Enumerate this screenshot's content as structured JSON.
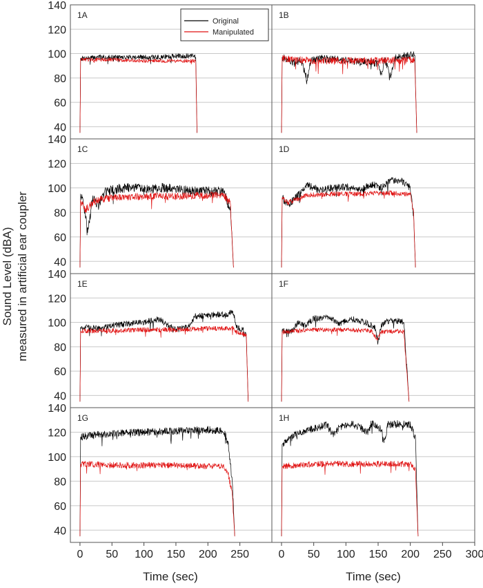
{
  "figure": {
    "ylabel_line1": "Sound Level (dBA)",
    "ylabel_line2": "measured in artificial ear coupler",
    "xlabel_left": "Time (sec)",
    "xlabel_right": "Time (sec)",
    "legend": [
      "Original",
      "Manipulated"
    ],
    "colors": {
      "original": "#000000",
      "manipulated": "#e01010",
      "grid": "#c8c8c8",
      "frame": "#555555"
    }
  },
  "chart_data": [
    {
      "type": "line",
      "panel": "1A",
      "xlim": [
        -15,
        300
      ],
      "ylim": [
        30,
        140
      ],
      "yticks": [
        40,
        60,
        80,
        100,
        120,
        140
      ],
      "series": [
        {
          "name": "Original",
          "points": [
            [
              0,
              35
            ],
            [
              1,
              96
            ],
            [
              30,
              97
            ],
            [
              60,
              97
            ],
            [
              90,
              97
            ],
            [
              120,
              97
            ],
            [
              150,
              98
            ],
            [
              180,
              98
            ],
            [
              181,
              97
            ],
            [
              183,
              35
            ]
          ],
          "noise": 2
        },
        {
          "name": "Manipulated",
          "points": [
            [
              0,
              35
            ],
            [
              1,
              95
            ],
            [
              50,
              95
            ],
            [
              100,
              94
            ],
            [
              150,
              94
            ],
            [
              180,
              94
            ],
            [
              181,
              93
            ],
            [
              183,
              35
            ]
          ],
          "noise": 1.5
        }
      ]
    },
    {
      "type": "line",
      "panel": "1B",
      "xlim": [
        -15,
        300
      ],
      "ylim": [
        30,
        140
      ],
      "yticks": [
        40,
        60,
        80,
        100,
        120,
        140
      ],
      "series": [
        {
          "name": "Original",
          "points": [
            [
              0,
              35
            ],
            [
              1,
              97
            ],
            [
              20,
              92
            ],
            [
              30,
              95
            ],
            [
              40,
              78
            ],
            [
              45,
              94
            ],
            [
              60,
              96
            ],
            [
              90,
              95
            ],
            [
              150,
              92
            ],
            [
              155,
              82
            ],
            [
              160,
              96
            ],
            [
              170,
              80
            ],
            [
              175,
              96
            ],
            [
              205,
              100
            ],
            [
              207,
              96
            ],
            [
              210,
              35
            ]
          ],
          "noise": 3
        },
        {
          "name": "Manipulated",
          "points": [
            [
              0,
              35
            ],
            [
              1,
              96
            ],
            [
              50,
              94
            ],
            [
              100,
              94
            ],
            [
              150,
              94
            ],
            [
              205,
              95
            ],
            [
              207,
              94
            ],
            [
              210,
              35
            ]
          ],
          "noise": 3
        }
      ]
    },
    {
      "type": "line",
      "panel": "1C",
      "xlim": [
        -15,
        300
      ],
      "ylim": [
        30,
        140
      ],
      "yticks": [
        40,
        60,
        80,
        100,
        120,
        140
      ],
      "series": [
        {
          "name": "Original",
          "points": [
            [
              0,
              35
            ],
            [
              1,
              95
            ],
            [
              8,
              80
            ],
            [
              12,
              62
            ],
            [
              20,
              92
            ],
            [
              30,
              85
            ],
            [
              40,
              98
            ],
            [
              70,
              100
            ],
            [
              100,
              99
            ],
            [
              130,
              100
            ],
            [
              160,
              98
            ],
            [
              200,
              97
            ],
            [
              225,
              97
            ],
            [
              230,
              88
            ],
            [
              235,
              85
            ],
            [
              240,
              35
            ]
          ],
          "noise": 4
        },
        {
          "name": "Manipulated",
          "points": [
            [
              0,
              35
            ],
            [
              1,
              90
            ],
            [
              8,
              82
            ],
            [
              15,
              85
            ],
            [
              25,
              90
            ],
            [
              50,
              92
            ],
            [
              100,
              93
            ],
            [
              150,
              93
            ],
            [
              200,
              94
            ],
            [
              225,
              94
            ],
            [
              230,
              90
            ],
            [
              235,
              88
            ],
            [
              240,
              35
            ]
          ],
          "noise": 3
        }
      ]
    },
    {
      "type": "line",
      "panel": "1D",
      "xlim": [
        -15,
        300
      ],
      "ylim": [
        30,
        140
      ],
      "yticks": [
        40,
        60,
        80,
        100,
        120,
        140
      ],
      "series": [
        {
          "name": "Original",
          "points": [
            [
              0,
              35
            ],
            [
              1,
              92
            ],
            [
              10,
              86
            ],
            [
              30,
              96
            ],
            [
              40,
              102
            ],
            [
              60,
              98
            ],
            [
              80,
              100
            ],
            [
              100,
              101
            ],
            [
              120,
              98
            ],
            [
              140,
              103
            ],
            [
              155,
              100
            ],
            [
              170,
              106
            ],
            [
              185,
              106
            ],
            [
              200,
              100
            ],
            [
              205,
              78
            ],
            [
              208,
              35
            ]
          ],
          "noise": 3
        },
        {
          "name": "Manipulated",
          "points": [
            [
              0,
              35
            ],
            [
              1,
              92
            ],
            [
              10,
              88
            ],
            [
              40,
              94
            ],
            [
              80,
              95
            ],
            [
              120,
              95
            ],
            [
              160,
              96
            ],
            [
              200,
              95
            ],
            [
              205,
              80
            ],
            [
              208,
              35
            ]
          ],
          "noise": 2
        }
      ]
    },
    {
      "type": "line",
      "panel": "1E",
      "xlim": [
        -15,
        300
      ],
      "ylim": [
        30,
        140
      ],
      "yticks": [
        40,
        60,
        80,
        100,
        120,
        140
      ],
      "series": [
        {
          "name": "Original",
          "points": [
            [
              0,
              35
            ],
            [
              1,
              96
            ],
            [
              30,
              95
            ],
            [
              60,
              98
            ],
            [
              100,
              100
            ],
            [
              125,
              103
            ],
            [
              135,
              98
            ],
            [
              150,
              94
            ],
            [
              170,
              96
            ],
            [
              180,
              105
            ],
            [
              230,
              107
            ],
            [
              240,
              108
            ],
            [
              245,
              96
            ],
            [
              255,
              94
            ],
            [
              260,
              90
            ],
            [
              263,
              35
            ]
          ],
          "noise": 2.5
        },
        {
          "name": "Manipulated",
          "points": [
            [
              0,
              35
            ],
            [
              1,
              93
            ],
            [
              50,
              93
            ],
            [
              100,
              94
            ],
            [
              150,
              94
            ],
            [
              200,
              95
            ],
            [
              240,
              95
            ],
            [
              245,
              92
            ],
            [
              260,
              90
            ],
            [
              263,
              35
            ]
          ],
          "noise": 2
        }
      ]
    },
    {
      "type": "line",
      "panel": "1F",
      "xlim": [
        -15,
        300
      ],
      "ylim": [
        30,
        140
      ],
      "yticks": [
        40,
        60,
        80,
        100,
        120,
        140
      ],
      "series": [
        {
          "name": "Original",
          "points": [
            [
              0,
              35
            ],
            [
              1,
              94
            ],
            [
              15,
              92
            ],
            [
              25,
              100
            ],
            [
              35,
              97
            ],
            [
              50,
              103
            ],
            [
              75,
              104
            ],
            [
              90,
              99
            ],
            [
              110,
              103
            ],
            [
              130,
              100
            ],
            [
              145,
              96
            ],
            [
              150,
              84
            ],
            [
              155,
              98
            ],
            [
              165,
              101
            ],
            [
              185,
              101
            ],
            [
              190,
              100
            ],
            [
              198,
              35
            ]
          ],
          "noise": 2.5
        },
        {
          "name": "Manipulated",
          "points": [
            [
              0,
              35
            ],
            [
              1,
              92
            ],
            [
              50,
              94
            ],
            [
              100,
              94
            ],
            [
              140,
              93
            ],
            [
              148,
              86
            ],
            [
              155,
              92
            ],
            [
              185,
              93
            ],
            [
              190,
              92
            ],
            [
              198,
              35
            ]
          ],
          "noise": 1.8
        }
      ]
    },
    {
      "type": "line",
      "panel": "1G",
      "xlim": [
        -15,
        300
      ],
      "ylim": [
        30,
        140
      ],
      "yticks": [
        40,
        60,
        80,
        100,
        120,
        140
      ],
      "series": [
        {
          "name": "Original",
          "points": [
            [
              0,
              35
            ],
            [
              1,
              116
            ],
            [
              30,
              118
            ],
            [
              60,
              119
            ],
            [
              100,
              120
            ],
            [
              150,
              121
            ],
            [
              200,
              122
            ],
            [
              225,
              121
            ],
            [
              232,
              110
            ],
            [
              238,
              80
            ],
            [
              242,
              35
            ]
          ],
          "noise": 3
        },
        {
          "name": "Manipulated",
          "points": [
            [
              0,
              35
            ],
            [
              1,
              94
            ],
            [
              50,
              93
            ],
            [
              100,
              93
            ],
            [
              150,
              93
            ],
            [
              200,
              92
            ],
            [
              225,
              92
            ],
            [
              232,
              85
            ],
            [
              238,
              70
            ],
            [
              242,
              35
            ]
          ],
          "noise": 2.5
        }
      ]
    },
    {
      "type": "line",
      "panel": "1H",
      "xlim": [
        -15,
        300
      ],
      "ylim": [
        30,
        140
      ],
      "yticks": [
        40,
        60,
        80,
        100,
        120,
        140
      ],
      "series": [
        {
          "name": "Original",
          "points": [
            [
              0,
              35
            ],
            [
              1,
              110
            ],
            [
              10,
              115
            ],
            [
              30,
              120
            ],
            [
              50,
              123
            ],
            [
              70,
              126
            ],
            [
              80,
              118
            ],
            [
              90,
              124
            ],
            [
              110,
              127
            ],
            [
              135,
              120
            ],
            [
              140,
              128
            ],
            [
              155,
              122
            ],
            [
              160,
              112
            ],
            [
              165,
              126
            ],
            [
              185,
              127
            ],
            [
              200,
              126
            ],
            [
              208,
              115
            ],
            [
              212,
              35
            ]
          ],
          "noise": 3
        },
        {
          "name": "Manipulated",
          "points": [
            [
              0,
              35
            ],
            [
              1,
              92
            ],
            [
              20,
              93
            ],
            [
              50,
              94
            ],
            [
              100,
              94
            ],
            [
              150,
              94
            ],
            [
              200,
              94
            ],
            [
              208,
              90
            ],
            [
              212,
              35
            ]
          ],
          "noise": 2.5
        }
      ]
    }
  ]
}
